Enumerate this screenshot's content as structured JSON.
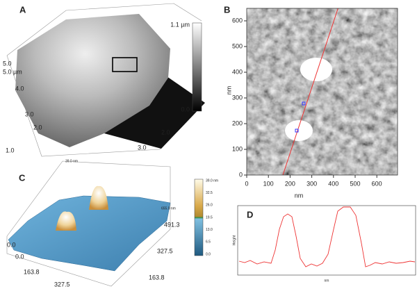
{
  "panels": [
    {
      "label": "A",
      "scale_top": "1.1 µm",
      "scale_bottom": "0.0",
      "left_labels": [
        "5.0",
        "5.0 µm",
        "4.0",
        "3.0",
        "2.0",
        "1.0"
      ],
      "bottom_labels": [
        "3.0",
        "2.0"
      ]
    },
    {
      "label": "B",
      "x_ticks": [
        "0",
        "100",
        "200",
        "300",
        "400",
        "500",
        "600"
      ],
      "y_ticks": [
        "0",
        "100",
        "200",
        "300",
        "400",
        "500",
        "600"
      ],
      "x_label": "nm",
      "y_label": "nm"
    },
    {
      "label": "C",
      "scale_labels": [
        "39.0 nm",
        "32.5",
        "26.0",
        "19.5",
        "13.0",
        "6.5",
        "0.0"
      ],
      "top_label": "39.0 nm",
      "axis_labels": [
        "0.0",
        "0.0",
        "163.8",
        "327.5",
        "163.8",
        "327.5",
        "491.3",
        "655.0 nm"
      ]
    },
    {
      "label": "D",
      "x_label": "nm",
      "y_label": "Height"
    }
  ]
}
